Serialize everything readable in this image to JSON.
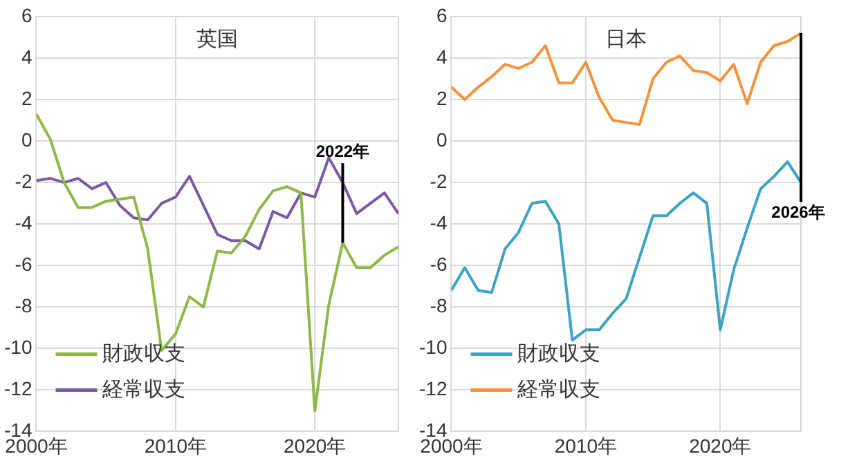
{
  "chart_data": [
    {
      "type": "line",
      "title": "英国",
      "x": [
        2000,
        2001,
        2002,
        2003,
        2004,
        2005,
        2006,
        2007,
        2008,
        2009,
        2010,
        2011,
        2012,
        2013,
        2014,
        2015,
        2016,
        2017,
        2018,
        2019,
        2020,
        2021,
        2022,
        2023,
        2024,
        2025,
        2026
      ],
      "series": [
        {
          "name": "財政収支",
          "color": "#8db946",
          "values": [
            1.3,
            0.1,
            -2.0,
            -3.2,
            -3.2,
            -2.9,
            -2.8,
            -2.7,
            -5.2,
            -10.1,
            -9.3,
            -7.5,
            -8.0,
            -5.3,
            -5.4,
            -4.6,
            -3.3,
            -2.4,
            -2.2,
            -2.5,
            -13.0,
            -7.9,
            -4.9,
            -6.1,
            -6.1,
            -5.5,
            -5.1
          ]
        },
        {
          "name": "経常収支",
          "color": "#7a5aa6",
          "values": [
            -1.9,
            -1.8,
            -2.0,
            -1.8,
            -2.3,
            -2.0,
            -3.1,
            -3.7,
            -3.8,
            -3.0,
            -2.7,
            -1.7,
            -3.1,
            -4.5,
            -4.8,
            -4.8,
            -5.2,
            -3.4,
            -3.7,
            -2.5,
            -2.7,
            -0.8,
            -2.0,
            -3.5,
            -3.0,
            -2.5,
            -3.5
          ]
        }
      ],
      "xlim": [
        2000,
        2026
      ],
      "xticks": [
        {
          "value": 2000,
          "label": "2000年"
        },
        {
          "value": 2010,
          "label": "2010年"
        },
        {
          "value": 2020,
          "label": "2020年"
        }
      ],
      "ylim": [
        -14,
        6
      ],
      "yticks": [
        -14,
        -12,
        -10,
        -8,
        -6,
        -4,
        -2,
        0,
        2,
        4,
        6
      ],
      "ref_lines": [
        {
          "axis": "x",
          "value": 2022,
          "label": "2022年",
          "color": "#000000"
        }
      ],
      "grid": true,
      "legend": "bottom left",
      "marker": "none",
      "line_style": "solid"
    },
    {
      "type": "line",
      "title": "日本",
      "x": [
        2000,
        2001,
        2002,
        2003,
        2004,
        2005,
        2006,
        2007,
        2008,
        2009,
        2010,
        2011,
        2012,
        2013,
        2014,
        2015,
        2016,
        2017,
        2018,
        2019,
        2020,
        2021,
        2022,
        2023,
        2024,
        2025,
        2026
      ],
      "series": [
        {
          "name": "財政収支",
          "color": "#3ba3c3",
          "values": [
            -7.2,
            -6.1,
            -7.2,
            -7.3,
            -5.2,
            -4.4,
            -3.0,
            -2.9,
            -4.0,
            -9.6,
            -9.1,
            -9.1,
            -8.3,
            -7.6,
            -5.6,
            -3.6,
            -3.6,
            -3.0,
            -2.5,
            -3.0,
            -9.1,
            -6.2,
            -4.2,
            -2.3,
            -1.7,
            -1.0,
            -2.0
          ]
        },
        {
          "name": "経常収支",
          "color": "#f5923a",
          "values": [
            2.6,
            2.0,
            2.6,
            3.1,
            3.7,
            3.5,
            3.8,
            4.6,
            2.8,
            2.8,
            3.8,
            2.1,
            1.0,
            0.9,
            0.8,
            3.0,
            3.8,
            4.1,
            3.4,
            3.3,
            2.9,
            3.7,
            1.8,
            3.8,
            4.6,
            4.8,
            5.2
          ]
        }
      ],
      "xlim": [
        2000,
        2026
      ],
      "xticks": [
        {
          "value": 2000,
          "label": "2000年"
        },
        {
          "value": 2010,
          "label": "2010年"
        },
        {
          "value": 2020,
          "label": "2020年"
        }
      ],
      "ylim": [
        -14,
        6
      ],
      "yticks": [
        -14,
        -12,
        -10,
        -8,
        -6,
        -4,
        -2,
        0,
        2,
        4,
        6
      ],
      "ref_lines": [
        {
          "axis": "x",
          "value": 2026,
          "label": "2026年",
          "color": "#000000"
        }
      ],
      "grid": true,
      "legend": "bottom left",
      "marker": "none",
      "line_style": "solid"
    }
  ]
}
